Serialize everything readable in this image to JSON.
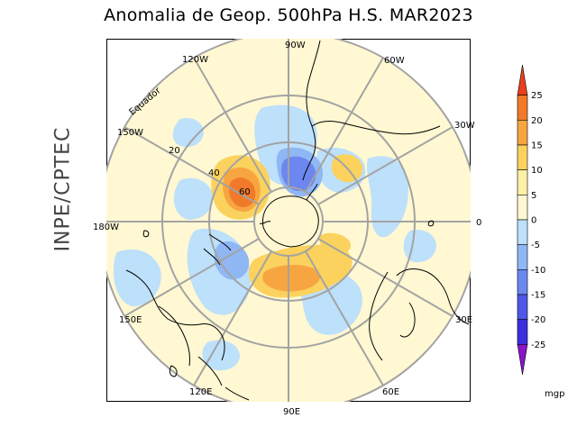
{
  "title": "Anomalia de Geop. 500hPa H.S. MAR2023",
  "side_label": "INPE/CPTEC",
  "map": {
    "projection": "polar stereographic, south pole",
    "equator_label": "Equador",
    "longitude_labels": [
      "90W",
      "60W",
      "30W",
      "0",
      "30E",
      "60E",
      "90E",
      "120E",
      "150E",
      "180W",
      "150W",
      "120W"
    ],
    "latitude_labels": [
      "20",
      "40",
      "60"
    ]
  },
  "colorbar": {
    "unit": "mgp",
    "ticks": [
      "25",
      "20",
      "15",
      "10",
      "5",
      "0",
      "-5",
      "-10",
      "-15",
      "-20",
      "-25"
    ],
    "colors": [
      "#e8401c",
      "#f07a2a",
      "#f7a540",
      "#fbd25e",
      "#fdf1a8",
      "#fff8d2",
      "#bde0fb",
      "#8fb7f4",
      "#6c87f0",
      "#4f57e8",
      "#3a2ee0",
      "#8a14c8"
    ]
  },
  "anomaly_features": [
    {
      "name": "positive-center-60",
      "sign": "positive",
      "value_range": "15 to 20"
    },
    {
      "name": "negative-center-south-america",
      "sign": "negative",
      "value_range": "-15 to -10"
    },
    {
      "name": "positive-center-indian-ocean",
      "sign": "positive",
      "value_range": "10 to 15"
    },
    {
      "name": "negative-center-australia",
      "sign": "negative",
      "value_range": "-10 to -5"
    }
  ]
}
